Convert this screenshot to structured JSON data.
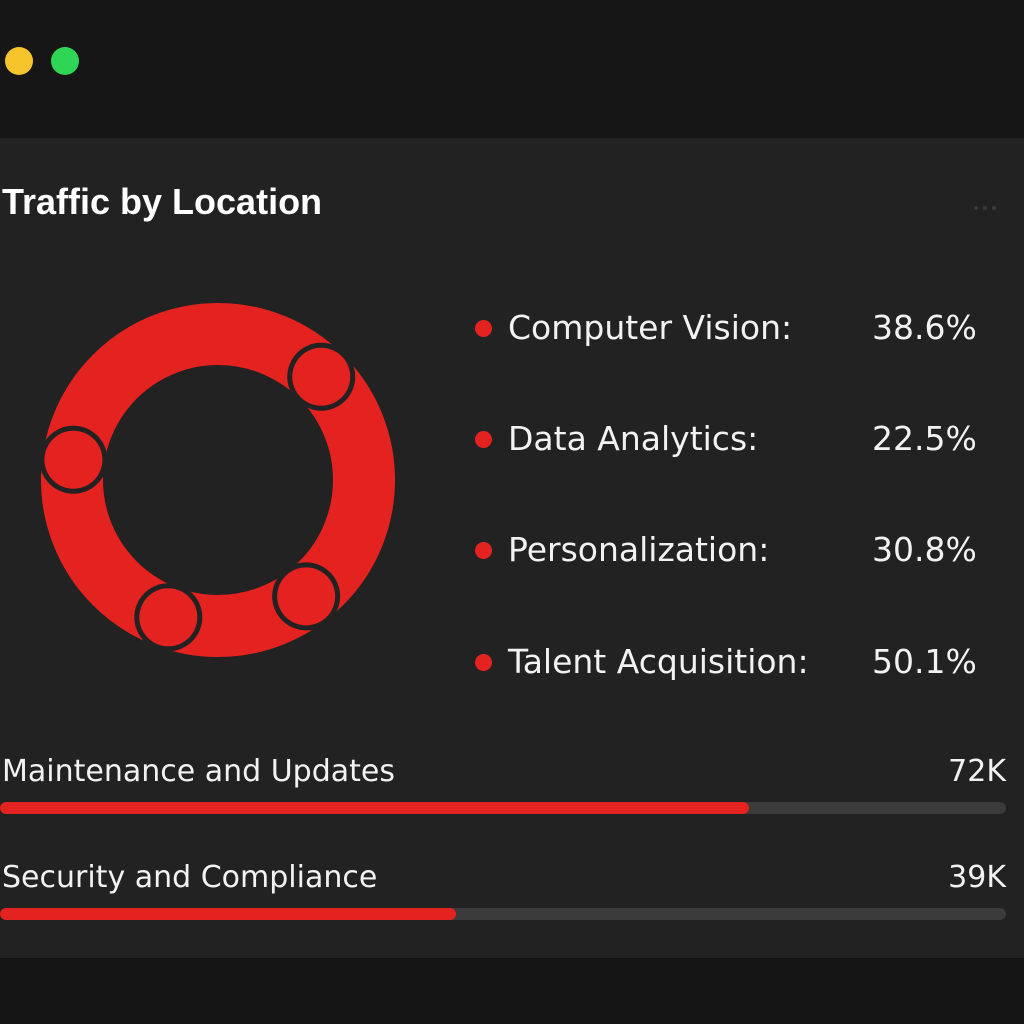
{
  "window": {
    "controls": [
      {
        "name": "minimize",
        "color": "#f7c52b"
      },
      {
        "name": "maximize",
        "color": "#2fd656"
      }
    ]
  },
  "card": {
    "title": "Traffic by Location",
    "menu_icon": "more-horizontal-icon"
  },
  "accent_color": "#e42320",
  "legend": [
    {
      "label": "Computer Vision:",
      "value": "38.6%"
    },
    {
      "label": "Data Analytics:",
      "value": "22.5%"
    },
    {
      "label": "Personalization:",
      "value": "30.8%"
    },
    {
      "label": "Talent Acquisition:",
      "value": "50.1%"
    }
  ],
  "metrics": [
    {
      "label": "Maintenance and Updates",
      "value": "72K",
      "progress": 0.745
    },
    {
      "label": "Security and Compliance",
      "value": "39K",
      "progress": 0.453
    }
  ]
}
